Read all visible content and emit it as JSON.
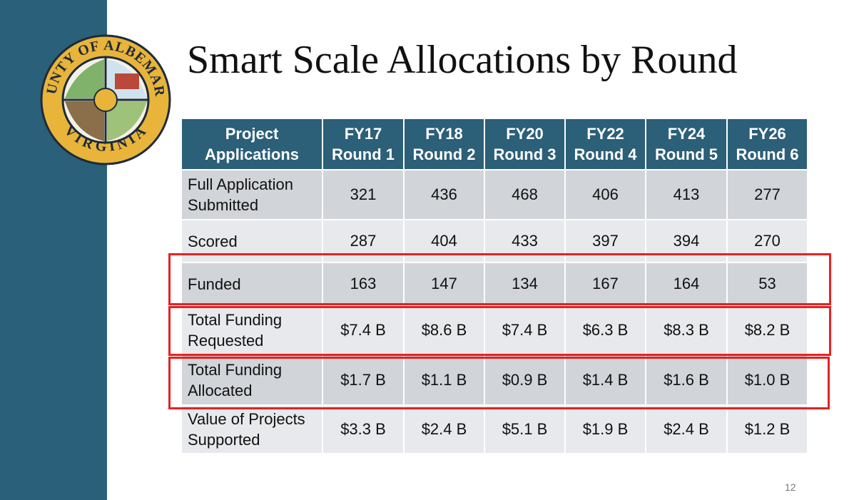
{
  "slide": {
    "title": "Smart Scale Allocations by Round",
    "page_number": "12",
    "logo": {
      "top_text": "COUNTY OF ALBEMARLE",
      "bottom_text": "VIRGINIA"
    }
  },
  "table": {
    "header": [
      "Project\nApplications",
      "FY17\nRound 1",
      "FY18\nRound 2",
      "FY20\nRound 3",
      "FY22\nRound 4",
      "FY24\nRound 5",
      "FY26\nRound 6"
    ],
    "rows": [
      [
        "Full Application\nSubmitted",
        "321",
        "436",
        "468",
        "406",
        "413",
        "277"
      ],
      [
        "Scored",
        "287",
        "404",
        "433",
        "397",
        "394",
        "270"
      ],
      [
        "Funded",
        "163",
        "147",
        "134",
        "167",
        "164",
        "53"
      ],
      [
        "Total Funding\nRequested",
        "$7.4 B",
        "$8.6 B",
        "$7.4 B",
        "$6.3 B",
        "$8.3 B",
        "$8.2 B"
      ],
      [
        "Total Funding\nAllocated",
        "$1.7 B",
        "$1.1 B",
        "$0.9 B",
        "$1.4 B",
        "$1.6 B",
        "$1.0 B"
      ],
      [
        "Value of Projects\nSupported",
        "$3.3 B",
        "$2.4 B",
        "$5.1 B",
        "$1.9 B",
        "$2.4 B",
        "$1.2 B"
      ]
    ]
  }
}
